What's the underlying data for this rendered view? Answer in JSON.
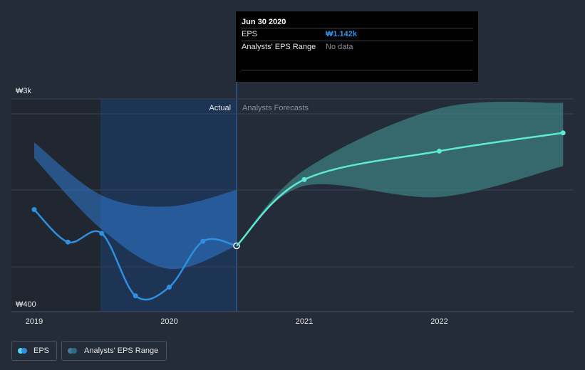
{
  "chart_data": {
    "type": "line",
    "y_axis": {
      "min_label": "₩400",
      "max_label": "₩3k",
      "min": 400,
      "max": 3000
    },
    "x_ticks": [
      "2019",
      "2020",
      "2021",
      "2022"
    ],
    "divider_labels": {
      "actual": "Actual",
      "forecast": "Analysts Forecasts"
    },
    "series": [
      {
        "name": "EPS",
        "color": "#2f8fe0",
        "points": [
          {
            "x": "2019-01",
            "y": 1600
          },
          {
            "x": "2019-04",
            "y": 1190
          },
          {
            "x": "2019-07",
            "y": 1300
          },
          {
            "x": "2019-10",
            "y": 510
          },
          {
            "x": "2020-01",
            "y": 620
          },
          {
            "x": "2020-04",
            "y": 1200
          },
          {
            "x": "2020-06-30",
            "y": 1142
          }
        ]
      },
      {
        "name": "EPS Forecast",
        "color": "#5fe8d4",
        "points": [
          {
            "x": "2020-06-30",
            "y": 1142
          },
          {
            "x": "2021-01",
            "y": 1980
          },
          {
            "x": "2022-01",
            "y": 2340
          },
          {
            "x": "2022-12",
            "y": 2570
          }
        ]
      }
    ],
    "past_range": {
      "upper": [
        {
          "x": "2019-01",
          "y": 2450
        },
        {
          "x": "2019-07",
          "y": 1780
        },
        {
          "x": "2020-01",
          "y": 1640
        },
        {
          "x": "2020-06-30",
          "y": 1850
        }
      ],
      "lower": [
        {
          "x": "2019-01",
          "y": 2250
        },
        {
          "x": "2019-07",
          "y": 1350
        },
        {
          "x": "2020-01",
          "y": 850
        },
        {
          "x": "2020-06-30",
          "y": 1142
        }
      ]
    },
    "forecast_range": {
      "upper": [
        {
          "x": "2020-06-30",
          "y": 1142
        },
        {
          "x": "2021-01",
          "y": 2100
        },
        {
          "x": "2022-01",
          "y": 2880
        },
        {
          "x": "2022-12",
          "y": 2950
        }
      ],
      "lower": [
        {
          "x": "2020-06-30",
          "y": 1142
        },
        {
          "x": "2021-01",
          "y": 1900
        },
        {
          "x": "2022-01",
          "y": 1760
        },
        {
          "x": "2022-12",
          "y": 2150
        }
      ]
    }
  },
  "tooltip": {
    "date": "Jun 30 2020",
    "eps_label": "EPS",
    "eps_value": "₩1.142k",
    "range_label": "Analysts' EPS Range",
    "range_value": "No data"
  },
  "legend": {
    "eps": {
      "label": "EPS",
      "color1": "#5ad0f5",
      "color2": "#2f8fe0"
    },
    "range": {
      "label": "Analysts' EPS Range",
      "color1": "#3d7f9a",
      "color2": "#2c6d80"
    }
  }
}
